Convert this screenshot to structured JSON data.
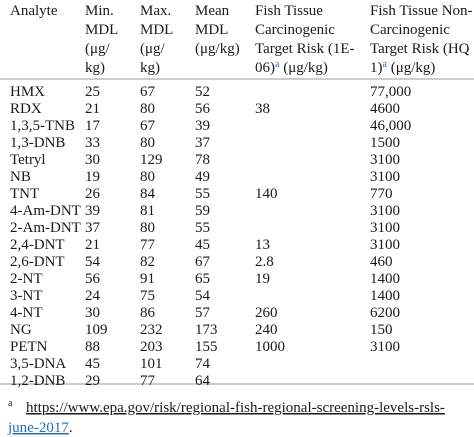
{
  "table": {
    "headers": [
      {
        "lines": [
          "Analyte"
        ]
      },
      {
        "lines": [
          "Min.",
          "MDL",
          "(μg/",
          "kg)"
        ]
      },
      {
        "lines": [
          "Max.",
          "MDL",
          "(μg/",
          "kg)"
        ]
      },
      {
        "lines": [
          "Mean",
          "MDL",
          "(μg/kg)"
        ]
      },
      {
        "lines": [
          "Fish Tissue",
          "Carcinogenic",
          "Target Risk (1E-"
        ],
        "tail": {
          "before": "06)",
          "sup": "a",
          "after": " (μg/kg)"
        }
      },
      {
        "lines": [
          "Fish Tissue Non-",
          "Carcinogenic",
          "Target Risk (HQ ="
        ],
        "tail": {
          "before": "1)",
          "sup": "a",
          "after": " (μg/kg)"
        }
      }
    ],
    "rows": [
      [
        "HMX",
        "25",
        "67",
        "52",
        null,
        "77,000"
      ],
      [
        "RDX",
        "21",
        "80",
        "56",
        "38",
        "4600"
      ],
      [
        "1,3,5-TNB",
        "17",
        "67",
        "39",
        null,
        "46,000"
      ],
      [
        "1,3-DNB",
        "33",
        "80",
        "37",
        null,
        "1500"
      ],
      [
        "Tetryl",
        "30",
        "129",
        "78",
        null,
        "3100"
      ],
      [
        "NB",
        "19",
        "80",
        "49",
        null,
        "3100"
      ],
      [
        "TNT",
        "26",
        "84",
        "55",
        "140",
        "770"
      ],
      [
        "4-Am-DNT",
        "39",
        "81",
        "59",
        null,
        "3100"
      ],
      [
        "2-Am-DNT",
        "37",
        "80",
        "55",
        null,
        "3100"
      ],
      [
        "2,4-DNT",
        "21",
        "77",
        "45",
        "13",
        "3100"
      ],
      [
        "2,6-DNT",
        "54",
        "82",
        "67",
        "2.8",
        "460"
      ],
      [
        "2-NT",
        "56",
        "91",
        "65",
        "19",
        "1400"
      ],
      [
        "3-NT",
        "24",
        "75",
        "54",
        null,
        "1400"
      ],
      [
        "4-NT",
        "30",
        "86",
        "57",
        "260",
        "6200"
      ],
      [
        "NG",
        "109",
        "232",
        "173",
        "240",
        "150"
      ],
      [
        "PETN",
        "88",
        "203",
        "155",
        "1000",
        "3100"
      ],
      [
        "3,5-DNA",
        "45",
        "101",
        "74",
        null,
        null
      ],
      [
        "1,2-DNB",
        "29",
        "77",
        "64",
        null,
        null
      ]
    ],
    "footnote": {
      "marker": "a",
      "link_line1": "https://www.epa.gov/risk/regional-fish-regional-screening-levels-rsls-",
      "link_line2": "june-2017",
      "end": "."
    }
  }
}
